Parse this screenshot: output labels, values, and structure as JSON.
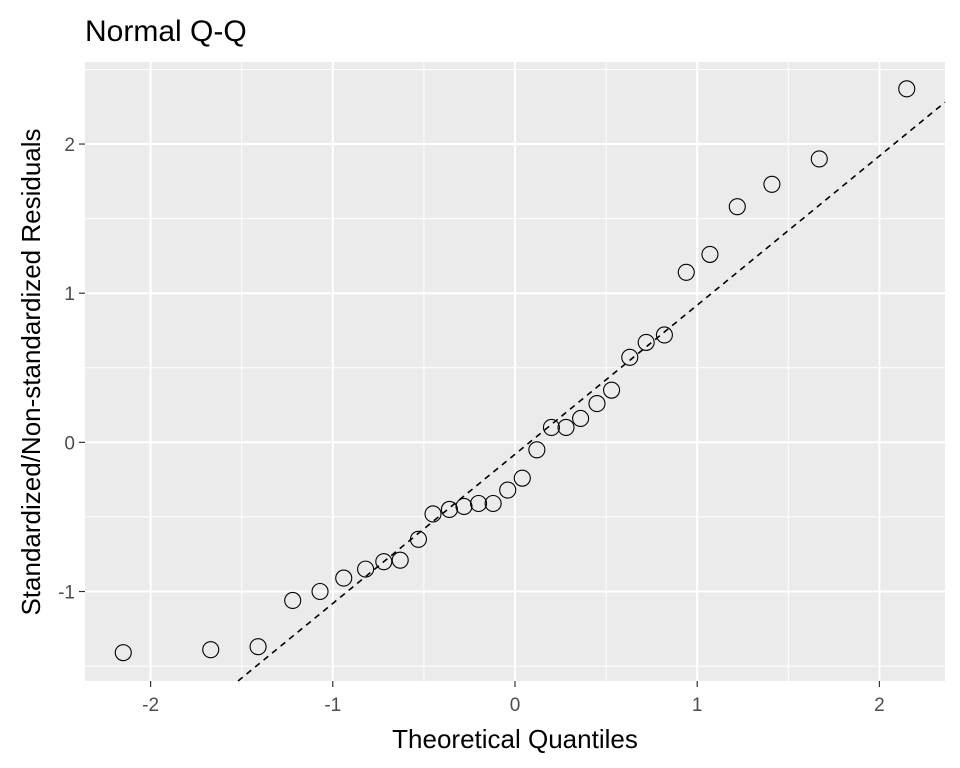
{
  "chart_data": {
    "type": "scatter",
    "title": "Normal Q-Q",
    "xlabel": "Theoretical Quantiles",
    "ylabel": "Standardized/Non-standardized Residuals",
    "xlim": [
      -2.36,
      2.36
    ],
    "ylim": [
      -1.6,
      2.55
    ],
    "x_ticks": [
      -2,
      -1,
      0,
      1,
      2
    ],
    "x_tick_labels": [
      "-2",
      "-1",
      "0",
      "1",
      "2"
    ],
    "y_ticks": [
      -1,
      0,
      1,
      2
    ],
    "y_tick_labels": [
      "-1",
      "0",
      "1",
      "2"
    ],
    "grid": true,
    "legend": "none",
    "points": {
      "x": [
        -2.15,
        -1.67,
        -1.41,
        -1.22,
        -1.07,
        -0.94,
        -0.82,
        -0.72,
        -0.63,
        -0.53,
        -0.45,
        -0.36,
        -0.28,
        -0.2,
        -0.12,
        -0.04,
        0.04,
        0.12,
        0.2,
        0.28,
        0.36,
        0.45,
        0.53,
        0.63,
        0.72,
        0.82,
        0.94,
        1.07,
        1.22,
        1.41,
        1.67,
        2.15
      ],
      "y": [
        -1.41,
        -1.39,
        -1.37,
        -1.06,
        -1.0,
        -0.91,
        -0.85,
        -0.8,
        -0.79,
        -0.65,
        -0.48,
        -0.45,
        -0.43,
        -0.41,
        -0.41,
        -0.32,
        -0.24,
        -0.05,
        0.1,
        0.1,
        0.16,
        0.26,
        0.35,
        0.57,
        0.67,
        0.72,
        1.14,
        1.26,
        1.58,
        1.73,
        1.9,
        2.37
      ]
    },
    "reference_line": {
      "style": "dashed",
      "slope": 1.0,
      "intercept": -0.08
    },
    "colors": {
      "panel_background": "#ebebeb",
      "grid": "#ffffff",
      "points": "#000000",
      "line": "#000000",
      "tick_text": "#4d4d4d",
      "tick_marks": "#333333"
    }
  }
}
